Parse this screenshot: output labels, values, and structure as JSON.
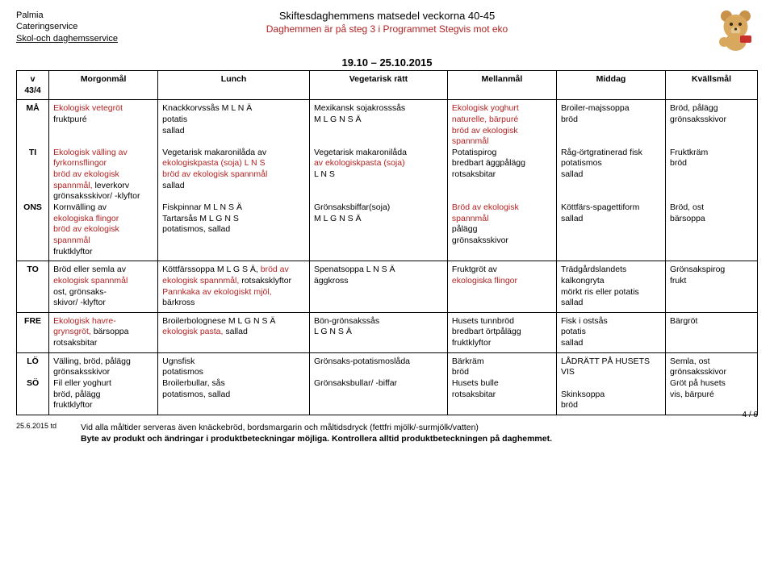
{
  "header": {
    "org1": "Palmia",
    "org2": "Cateringservice",
    "org3": "Skol-och daghemsservice",
    "title": "Skiftesdaghemmens matsedel veckorna 40-45",
    "subtitle": "Daghemmen är på steg 3 i Programmet Stegvis mot eko",
    "date_range": "19.10 – 25.10.2015"
  },
  "columns": {
    "week": "v 43/4",
    "c1": "Morgonmål",
    "c2": "Lunch",
    "c3": "Vegetarisk rätt",
    "c4": "Mellanmål",
    "c5": "Middag",
    "c6": "Kvällsmål"
  },
  "rows": [
    {
      "day": "MÅ",
      "cells": [
        {
          "parts": [
            {
              "t": "Ekologisk vetegröt",
              "eco": true
            },
            {
              "t": "fruktpuré"
            }
          ]
        },
        {
          "parts": [
            {
              "t": "Knackkorvssås M L N Ä"
            },
            {
              "t": "potatis"
            },
            {
              "t": "sallad"
            }
          ]
        },
        {
          "parts": [
            {
              "t": "Mexikansk sojakrosssås"
            },
            {
              "t": "M L G N S Ä"
            }
          ]
        },
        {
          "parts": [
            {
              "t": "Ekologisk yoghurt",
              "eco": true
            },
            {
              "t": "naturelle, bärpuré",
              "eco": true
            },
            {
              "t": "bröd av ekologisk",
              "eco": true
            },
            {
              "t": "spannmål",
              "eco": true
            }
          ]
        },
        {
          "parts": [
            {
              "t": "Broiler-majssoppa"
            },
            {
              "t": "bröd"
            }
          ]
        },
        {
          "parts": [
            {
              "t": "Bröd, pålägg"
            },
            {
              "t": "grönsaksskivor"
            }
          ]
        }
      ]
    },
    {
      "day": "TI",
      "cells": [
        {
          "parts": [
            {
              "t": "Ekologisk välling av",
              "eco": true
            },
            {
              "t": "fyrkornsflingor",
              "eco": true
            },
            {
              "t": "bröd av ekologisk",
              "eco": true
            },
            {
              "t": "spannmål, ",
              "eco": true,
              "inline": true
            },
            {
              "t": "leverkorv"
            },
            {
              "t": "grönsaksskivor/ -klyftor"
            }
          ]
        },
        {
          "parts": [
            {
              "t": "Vegetarisk makaronilåda av"
            },
            {
              "t": "ekologiskpasta (soja) L N S",
              "eco": true
            },
            {
              "t": "bröd av ekologisk spannmål",
              "eco": true
            },
            {
              "t": "sallad"
            }
          ]
        },
        {
          "parts": [
            {
              "t": "Vegetarisk makaronilåda"
            },
            {
              "t": "av ekologiskpasta (soja)",
              "eco": true
            },
            {
              "t": " L N S"
            }
          ]
        },
        {
          "parts": [
            {
              "t": "Potatispirog"
            },
            {
              "t": "bredbart äggpålägg"
            },
            {
              "t": "rotsaksbitar"
            }
          ]
        },
        {
          "parts": [
            {
              "t": "Råg-örtgratinerad fisk"
            },
            {
              "t": "potatismos"
            },
            {
              "t": "sallad"
            }
          ]
        },
        {
          "parts": [
            {
              "t": "Fruktkräm"
            },
            {
              "t": "bröd"
            }
          ]
        }
      ]
    },
    {
      "day": "ONS",
      "cells": [
        {
          "parts": [
            {
              "t": "Kornvälling av"
            },
            {
              "t": "ekologiska flingor",
              "eco": true
            },
            {
              "t": "bröd av ekologisk",
              "eco": true
            },
            {
              "t": "spannmål",
              "eco": true
            },
            {
              "t": "fruktklyftor"
            }
          ]
        },
        {
          "parts": [
            {
              "t": "Fiskpinnar M L N S Ä"
            },
            {
              "t": "Tartarsås M L G N S"
            },
            {
              "t": "potatismos, sallad"
            }
          ]
        },
        {
          "parts": [
            {
              "t": "Grönsaksbiffar(soja)"
            },
            {
              "t": "M L G N S Ä"
            }
          ]
        },
        {
          "parts": [
            {
              "t": "Bröd av ekologisk",
              "eco": true
            },
            {
              "t": "spannmål",
              "eco": true
            },
            {
              "t": "pålägg"
            },
            {
              "t": "grönsaksskivor"
            }
          ]
        },
        {
          "parts": [
            {
              "t": "Köttfärs-spagettiform"
            },
            {
              "t": "sallad"
            }
          ]
        },
        {
          "parts": [
            {
              "t": "Bröd, ost"
            },
            {
              "t": "bärsoppa"
            }
          ]
        }
      ]
    },
    {
      "day": "TO",
      "cells": [
        {
          "parts": [
            {
              "t": "Bröd eller semla av"
            },
            {
              "t": "ekologisk spannmål",
              "eco": true
            },
            {
              "t": "ost, grönsaks-"
            },
            {
              "t": "  skivor/ -klyftor"
            }
          ]
        },
        {
          "parts": [
            {
              "t": "Köttfärssoppa M L G S Ä, ",
              "inline": true
            },
            {
              "t": "bröd av",
              "eco": true
            },
            {
              "t": "ekologisk spannmål, ",
              "eco": true,
              "inline": true
            },
            {
              "t": "rotsaksklyftor"
            },
            {
              "t": "Pannkaka av ekologiskt mjöl,",
              "eco": true
            },
            {
              "t": "bärkross"
            }
          ]
        },
        {
          "parts": [
            {
              "t": "Spenatsoppa L N S Ä"
            },
            {
              "t": "äggkross"
            }
          ]
        },
        {
          "parts": [
            {
              "t": "Fruktgröt av"
            },
            {
              "t": "ekologiska flingor",
              "eco": true
            }
          ]
        },
        {
          "parts": [
            {
              "t": "Trädgårdslandets"
            },
            {
              "t": "kalkongryta"
            },
            {
              "t": "mörkt ris eller potatis"
            },
            {
              "t": "sallad"
            }
          ]
        },
        {
          "parts": [
            {
              "t": "Grönsakspirog"
            },
            {
              "t": "frukt"
            }
          ]
        }
      ]
    },
    {
      "day": "FRE",
      "cells": [
        {
          "parts": [
            {
              "t": "Ekologisk havre-",
              "eco": true
            },
            {
              "t": "grynsgröt, ",
              "eco": true,
              "inline": true
            },
            {
              "t": "bärsoppa"
            },
            {
              "t": "rotsaksbitar"
            }
          ]
        },
        {
          "parts": [
            {
              "t": "Broilerbolognese M L G N S Ä"
            },
            {
              "t": "ekologisk pasta, ",
              "eco": true,
              "inline": true
            },
            {
              "t": "sallad"
            }
          ]
        },
        {
          "parts": [
            {
              "t": "Bön-grönsakssås"
            },
            {
              "t": "L G N S Ä"
            }
          ]
        },
        {
          "parts": [
            {
              "t": "Husets tunnbröd"
            },
            {
              "t": "bredbart örtpålägg"
            },
            {
              "t": "fruktklyftor"
            }
          ]
        },
        {
          "parts": [
            {
              "t": "Fisk i ostsås"
            },
            {
              "t": "potatis"
            },
            {
              "t": "sallad"
            }
          ]
        },
        {
          "parts": [
            {
              "t": "Bärgröt"
            }
          ]
        }
      ]
    },
    {
      "day": "LÖ",
      "cells": [
        {
          "parts": [
            {
              "t": "Välling, bröd, pålägg"
            },
            {
              "t": "grönsaksskivor"
            }
          ]
        },
        {
          "parts": [
            {
              "t": "Ugnsfisk"
            },
            {
              "t": "potatismos"
            }
          ]
        },
        {
          "parts": [
            {
              "t": "Grönsaks-potatismoslåda"
            }
          ]
        },
        {
          "parts": [
            {
              "t": "Bärkräm"
            },
            {
              "t": "bröd"
            }
          ]
        },
        {
          "parts": [
            {
              "t": "LÅDRÄTT PÅ HUSETS VIS"
            }
          ]
        },
        {
          "parts": [
            {
              "t": "Semla, ost"
            },
            {
              "t": "grönsaksskivor"
            }
          ]
        }
      ]
    },
    {
      "day": "SÖ",
      "cells": [
        {
          "parts": [
            {
              "t": "Fil eller yoghurt"
            },
            {
              "t": "bröd, pålägg"
            },
            {
              "t": "fruktklyftor"
            }
          ]
        },
        {
          "parts": [
            {
              "t": "Broilerbullar, sås"
            },
            {
              "t": "potatismos, sallad"
            }
          ]
        },
        {
          "parts": [
            {
              "t": "Grönsaksbullar/ -biffar"
            }
          ]
        },
        {
          "parts": [
            {
              "t": "Husets bulle"
            },
            {
              "t": "rotsaksbitar"
            }
          ]
        },
        {
          "parts": [
            {
              "t": "Skinksoppa"
            },
            {
              "t": "bröd"
            }
          ]
        },
        {
          "parts": [
            {
              "t": "Gröt på husets"
            },
            {
              "t": "vis, bärpuré"
            }
          ]
        }
      ]
    }
  ],
  "row_groups": [
    {
      "start": 0,
      "len": 3,
      "merge_day": false
    },
    {
      "start": 3,
      "len": 1,
      "merge_day": false
    },
    {
      "start": 4,
      "len": 1,
      "merge_day": false
    },
    {
      "start": 5,
      "len": 2,
      "merge_day": false
    }
  ],
  "footer": {
    "date": "25.6.2015 td",
    "page": "4 / 6",
    "line1": "Vid alla måltider serveras även knäckebröd, bordsmargarin och måltidsdryck (fettfri mjölk/-surmjölk/vatten)",
    "line2a": "Byte av produkt och ändringar i produktbeteckningar möjliga. ",
    "line2b": "Kontrollera alltid produktbeteckningen på daghemmet."
  },
  "style": {
    "eco_color": "#b22222"
  }
}
